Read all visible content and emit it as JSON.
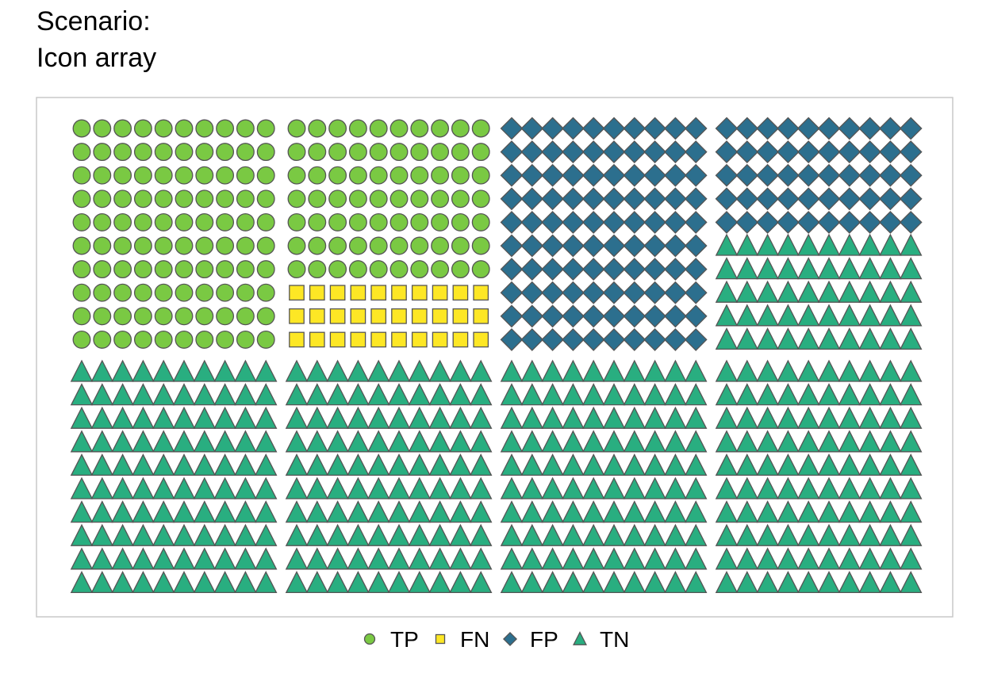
{
  "title_lines": [
    "Scenario:",
    "Icon array"
  ],
  "colors": {
    "TP": "#7ac943",
    "FN": "#fde725",
    "FP": "#2c6f8e",
    "TN": "#29ae80",
    "stroke": "#555555",
    "frame": "#c8c8c8"
  },
  "chart_data": {
    "type": "icon-array",
    "title": "Scenario: Icon array",
    "total": 800,
    "grid": {
      "blocks_x": 4,
      "blocks_y": 2,
      "rows_per_block": 10,
      "cols_per_block": 10
    },
    "legend_position": "bottom",
    "categories": [
      {
        "key": "TP",
        "label": "TP",
        "shape": "circle",
        "count": 170
      },
      {
        "key": "FN",
        "label": "FN",
        "shape": "square",
        "count": 30
      },
      {
        "key": "FP",
        "label": "FP",
        "shape": "diamond",
        "count": 150
      },
      {
        "key": "TN",
        "label": "TN",
        "shape": "triangle",
        "count": 450
      }
    ]
  }
}
